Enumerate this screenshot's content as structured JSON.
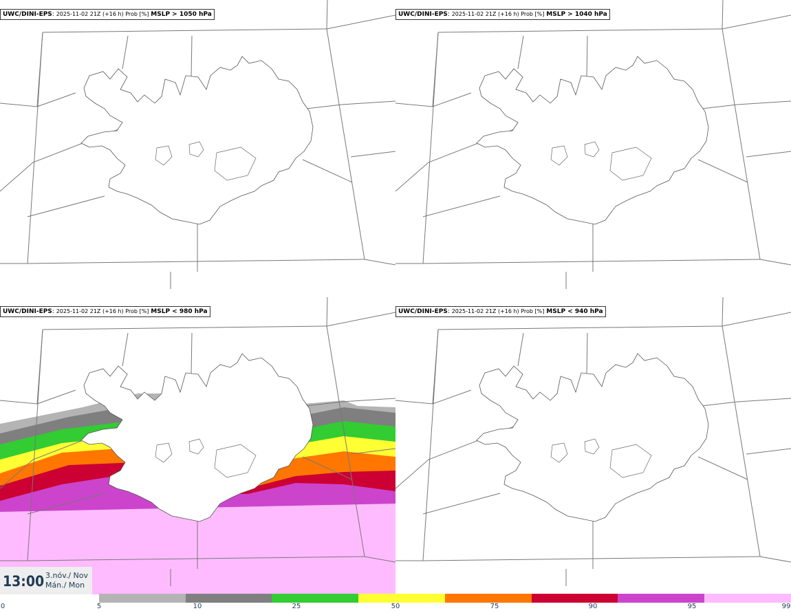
{
  "panels": [
    {
      "model": "UWC/DINI-EPS",
      "meta": "2025-11-02 21Z (+16 h) Prob [%]",
      "threshold": "MSLP > 1050 hPa"
    },
    {
      "model": "UWC/DINI-EPS",
      "meta": "2025-11-02 21Z (+16 h) Prob [%]",
      "threshold": "MSLP > 1040 hPa"
    },
    {
      "model": "UWC/DINI-EPS",
      "meta": "2025-11-02 21Z (+16 h) Prob [%]",
      "threshold": "MSLP < 980 hPa"
    },
    {
      "model": "UWC/DINI-EPS",
      "meta": "2025-11-02 21Z (+16 h) Prob [%]",
      "threshold": "MSLP < 940 hPa"
    }
  ],
  "valid_time": {
    "time": "13:00",
    "date_line1": "3.nóv./ Nov",
    "date_line2": "Mán./ Mon"
  },
  "colorbar": {
    "ticks": [
      "0",
      "5",
      "10",
      "25",
      "50",
      "75",
      "90",
      "95",
      "99"
    ],
    "colors": [
      "#b4b4b4",
      "#7f7f7f",
      "#33cc33",
      "#ffff33",
      "#ff7700",
      "#cc0033",
      "#cc44cc",
      "#ffbbff"
    ]
  }
}
